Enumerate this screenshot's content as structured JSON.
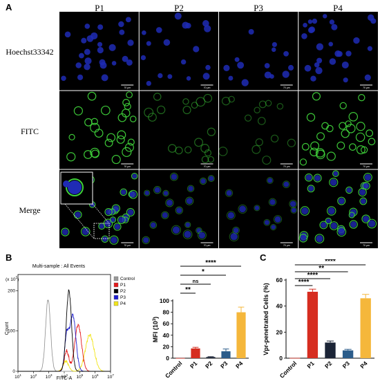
{
  "figure": {
    "panel_labels": {
      "a": "A",
      "b": "B",
      "c": "C"
    },
    "columns": [
      "P1",
      "P2",
      "P3",
      "P4"
    ],
    "rows": [
      "Hoechst33342",
      "FITC",
      "Merge"
    ],
    "scale_bar_label": "70 μm"
  },
  "flow": {
    "title": "Multi-sample : All Events",
    "y_label": "Count",
    "y_exp": "(x 10",
    "y_exp_sup": "1",
    "y_exp_end": ")",
    "x_label": "FITC-A",
    "y_ticks": [
      "0",
      "100",
      "200"
    ],
    "x_ticks_base": [
      "10",
      "10",
      "10",
      "10",
      "10",
      "10",
      "10"
    ],
    "x_ticks_exp": [
      "1",
      "2",
      "3",
      "4",
      "5",
      "6",
      "7"
    ],
    "legend": [
      {
        "label": "Control",
        "color": "#999999"
      },
      {
        "label": "P1",
        "color": "#e41a1c"
      },
      {
        "label": "P2",
        "color": "#000000"
      },
      {
        "label": "P3",
        "color": "#1f1fd0"
      },
      {
        "label": "P4",
        "color": "#f2e51b"
      }
    ]
  },
  "chart_data": [
    {
      "type": "bar",
      "categories": [
        "Control",
        "P1",
        "P2",
        "P3",
        "P4"
      ],
      "values": [
        0.3,
        17,
        2,
        12,
        80
      ],
      "errors": [
        0.1,
        2,
        0.6,
        4,
        9
      ],
      "colors": [
        "#d62d20",
        "#d62d20",
        "#1b2436",
        "#2b5c8a",
        "#f5b73b"
      ],
      "ylabel": "MFI (10",
      "ylabel_sup": "3",
      "ylabel_end": ")",
      "ylim": [
        0,
        100
      ],
      "yticks": [
        0,
        20,
        40,
        60,
        80,
        100
      ],
      "significance": [
        {
          "from": "Control",
          "to": "P1",
          "label": "**"
        },
        {
          "from": "Control",
          "to": "P2",
          "label": "ns"
        },
        {
          "from": "Control",
          "to": "P3",
          "label": "*"
        },
        {
          "from": "Control",
          "to": "P4",
          "label": "****"
        }
      ]
    },
    {
      "type": "bar",
      "categories": [
        "Control",
        "P1",
        "P2",
        "P3",
        "P4"
      ],
      "values": [
        0.2,
        51,
        12,
        6,
        46
      ],
      "errors": [
        0.1,
        2,
        1.2,
        0.8,
        3
      ],
      "colors": [
        "#d62d20",
        "#d62d20",
        "#1b2436",
        "#2b5c8a",
        "#f5b73b"
      ],
      "ylabel": "Vpr-penetrated Cells (%)",
      "ylim": [
        0,
        60
      ],
      "yticks": [
        0,
        20,
        40,
        60
      ],
      "significance": [
        {
          "from": "Control",
          "to": "P1",
          "label": "****"
        },
        {
          "from": "Control",
          "to": "P2",
          "label": "****"
        },
        {
          "from": "Control",
          "to": "P3",
          "label": "**"
        },
        {
          "from": "Control",
          "to": "P4",
          "label": "****"
        }
      ]
    }
  ]
}
